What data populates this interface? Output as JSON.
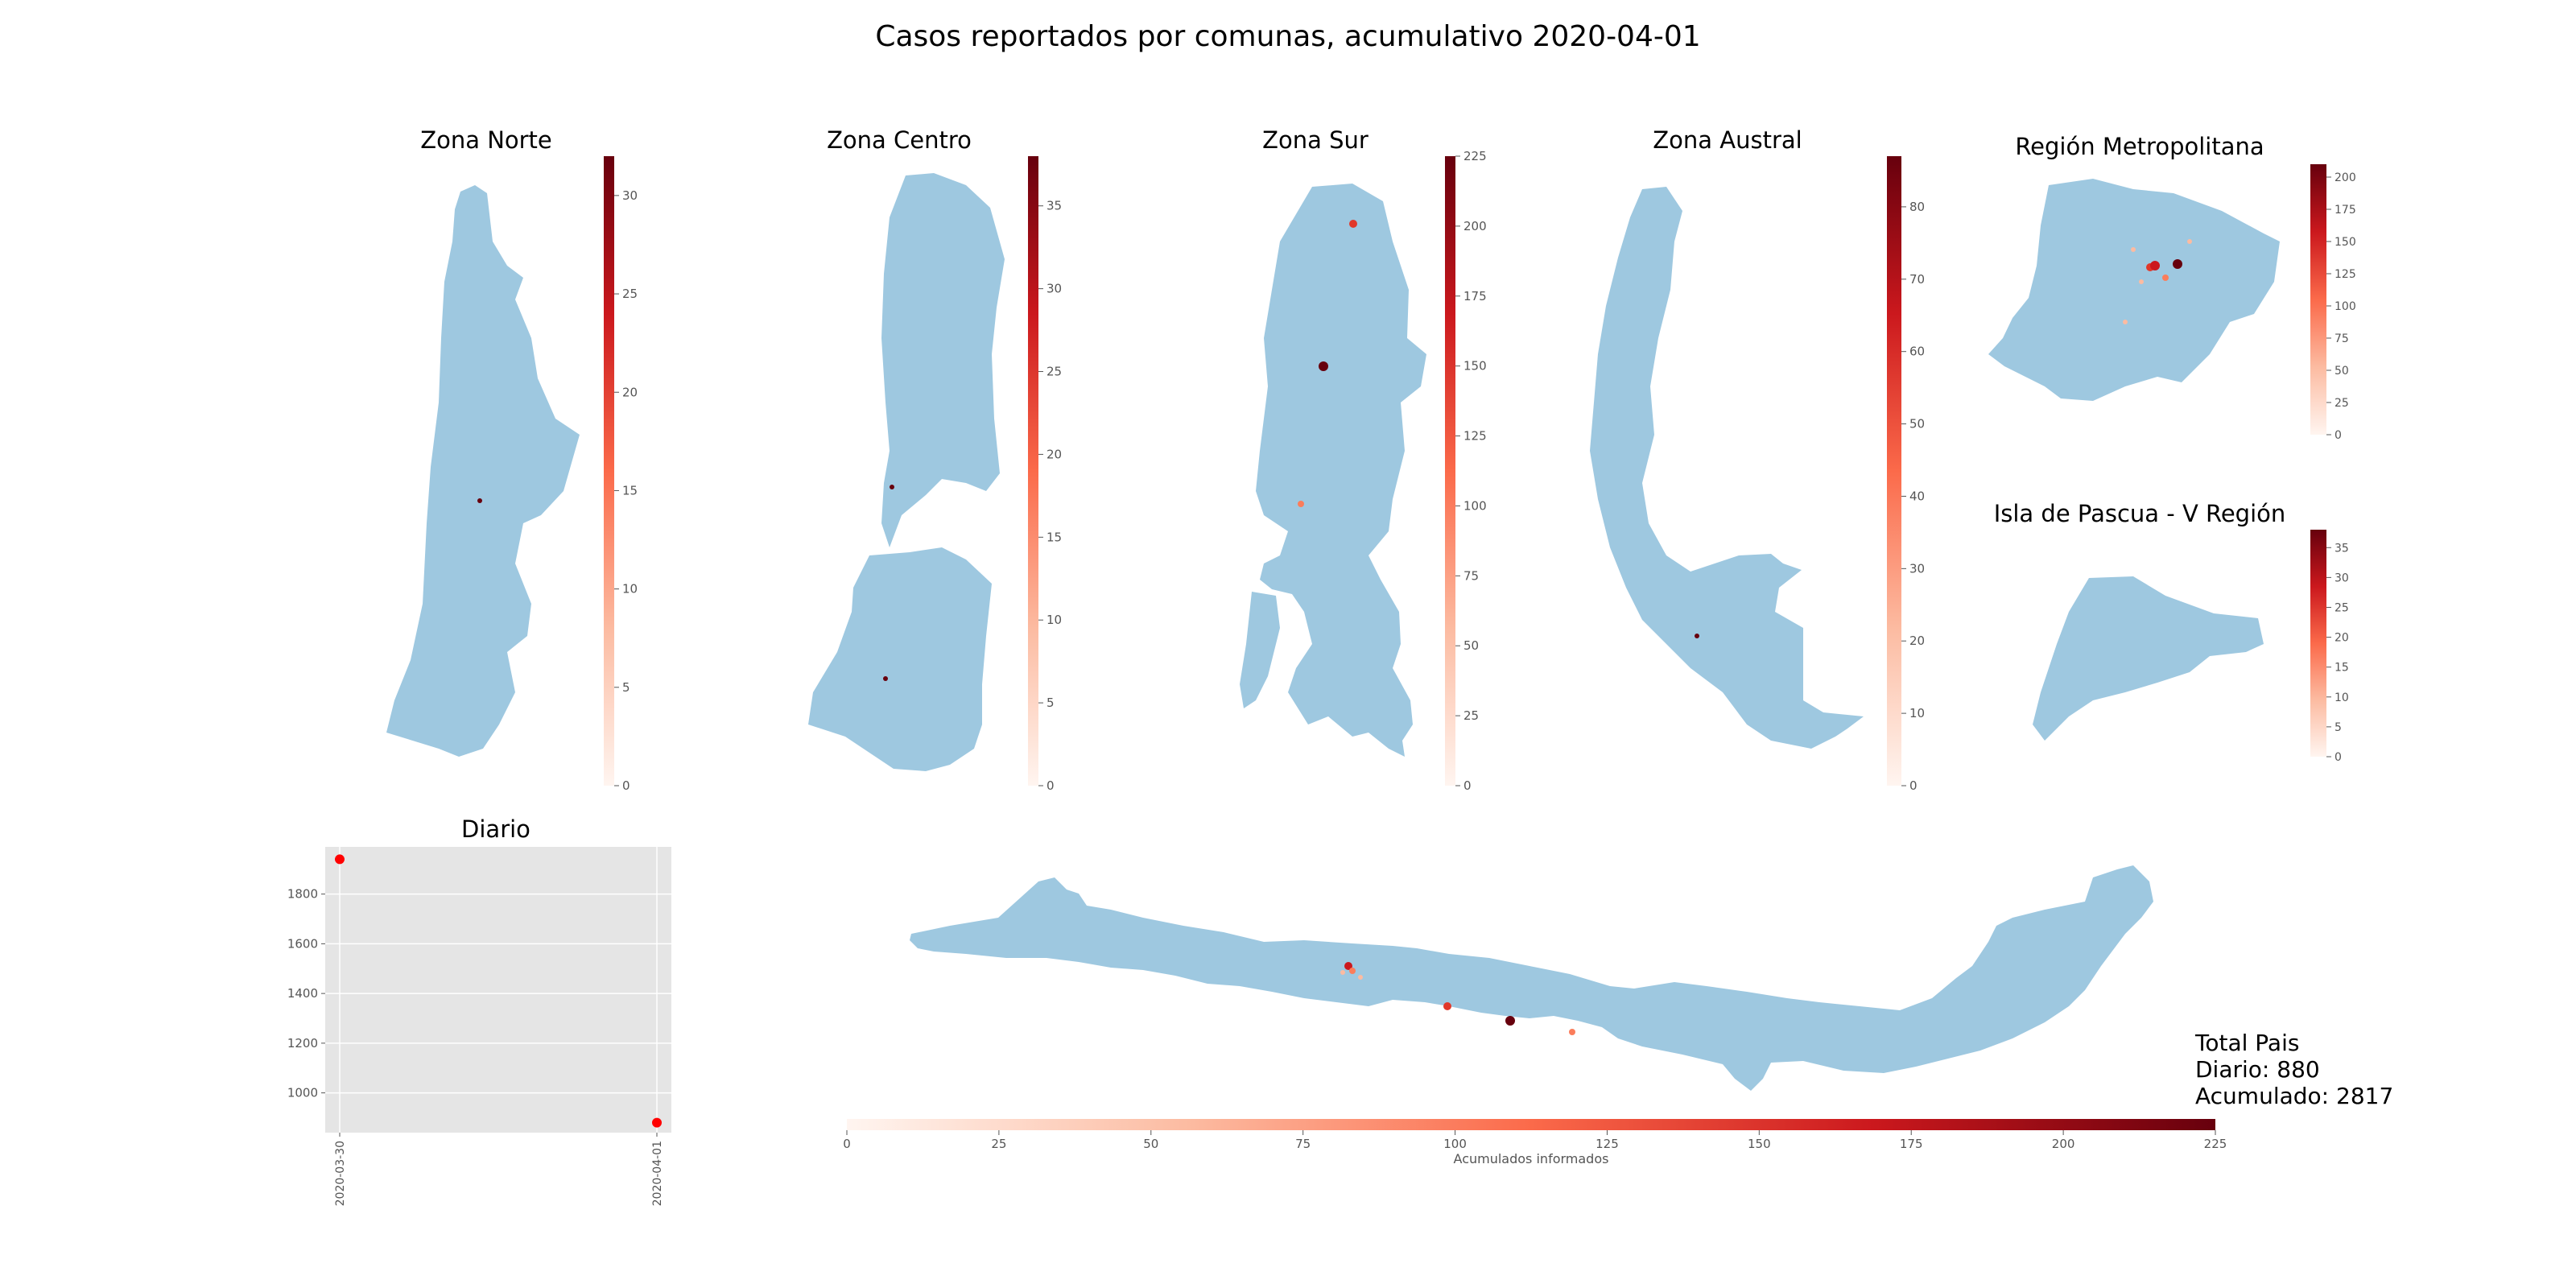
{
  "title": "Casos reportados por comunas, acumulativo 2020-04-01",
  "colors": {
    "land": "#9ec8e0",
    "plot_bg": "#e5e5e5",
    "grid": "#ffffff",
    "point": "#ff0000",
    "cmap": [
      "#fff5f0",
      "#fcbba1",
      "#fb6a4a",
      "#cb181d",
      "#67000d"
    ]
  },
  "panels": [
    {
      "id": "norte",
      "title": "Zona Norte",
      "colorbar": {
        "min": 0,
        "max": 32,
        "ticks": [
          0,
          5,
          10,
          15,
          20,
          25,
          30
        ]
      }
    },
    {
      "id": "centro",
      "title": "Zona Centro",
      "colorbar": {
        "min": 0,
        "max": 38,
        "ticks": [
          0,
          5,
          10,
          15,
          20,
          25,
          30,
          35
        ]
      }
    },
    {
      "id": "sur",
      "title": "Zona Sur",
      "colorbar": {
        "min": 0,
        "max": 225,
        "ticks": [
          0,
          25,
          50,
          75,
          100,
          125,
          150,
          175,
          200,
          225
        ]
      }
    },
    {
      "id": "austral",
      "title": "Zona Austral",
      "colorbar": {
        "min": 0,
        "max": 87,
        "ticks": [
          0,
          10,
          20,
          30,
          40,
          50,
          60,
          70,
          80
        ]
      }
    },
    {
      "id": "rm",
      "title": "Región Metropolitana",
      "colorbar": {
        "min": 0,
        "max": 210,
        "ticks": [
          0,
          25,
          50,
          75,
          100,
          125,
          150,
          175,
          200
        ]
      }
    },
    {
      "id": "pascua",
      "title": "Isla de Pascua - V Región",
      "colorbar": {
        "min": 0,
        "max": 38,
        "ticks": [
          0,
          5,
          10,
          15,
          20,
          25,
          30,
          35
        ]
      }
    }
  ],
  "chart_data": {
    "type": "scatter",
    "title": "Diario",
    "x": [
      "2020-03-30",
      "2020-04-01"
    ],
    "y": [
      1940,
      880
    ],
    "ylim": [
      840,
      1990
    ],
    "yticks": [
      1000,
      1200,
      1400,
      1600,
      1800
    ],
    "grid": true
  },
  "main_colorbar": {
    "label": "Acumulados informados",
    "min": 0,
    "max": 225,
    "ticks": [
      0,
      25,
      50,
      75,
      100,
      125,
      150,
      175,
      200,
      225
    ]
  },
  "totals": {
    "heading": "Total Pais",
    "diario": "Diario: 880",
    "acumulado": "Acumulado: 2817"
  }
}
